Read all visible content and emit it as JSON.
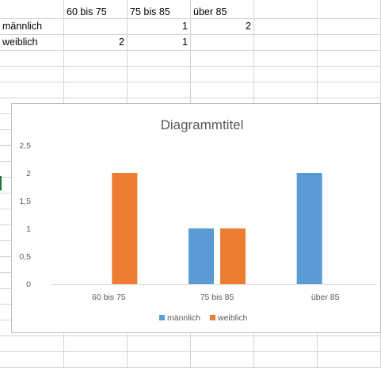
{
  "sheet": {
    "header_row": [
      "",
      "60 bis 75",
      "75 bis 85",
      "über 85"
    ],
    "rows": [
      {
        "label": "männlich",
        "values": [
          "",
          "1",
          "2"
        ]
      },
      {
        "label": "weiblich",
        "values": [
          "2",
          "1",
          ""
        ]
      }
    ]
  },
  "colors": {
    "series_male": "#5b9bd5",
    "series_female": "#ed7d31",
    "axis_text": "#595959",
    "gridline": "#d9d9d9"
  },
  "chart_data": {
    "type": "bar",
    "title": "Diagrammtitel",
    "categories": [
      "60 bis 75",
      "75 bis 85",
      "über 85"
    ],
    "series": [
      {
        "name": "männlich",
        "values": [
          0,
          1,
          2
        ]
      },
      {
        "name": "weiblich",
        "values": [
          2,
          1,
          0
        ]
      }
    ],
    "y_ticks": [
      "0",
      "0,5",
      "1",
      "1,5",
      "2",
      "2,5"
    ],
    "ylim": [
      0,
      2.5
    ],
    "grid": false,
    "legend_position": "bottom"
  }
}
